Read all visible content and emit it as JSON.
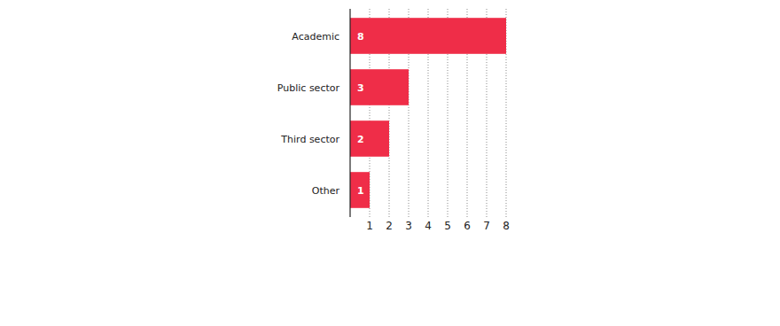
{
  "chart_data": {
    "type": "bar",
    "orientation": "horizontal",
    "categories": [
      "Academic",
      "Public sector",
      "Third sector",
      "Other"
    ],
    "values": [
      8,
      3,
      2,
      1
    ],
    "color": "#ef2d48",
    "xlim": [
      0,
      8
    ],
    "xticks": [
      1,
      2,
      3,
      4,
      5,
      6,
      7,
      8
    ],
    "grid": true,
    "data_labels": true
  }
}
